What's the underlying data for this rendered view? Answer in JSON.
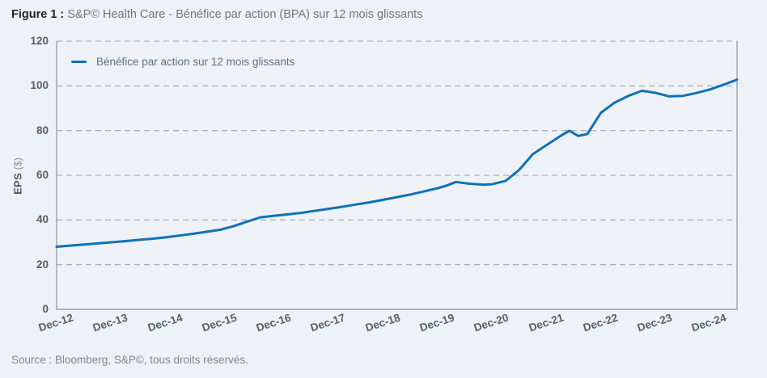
{
  "header": {
    "label": "Figure 1 :",
    "title": "S&P© Health Care - Bénéfice par action (BPA) sur 12 mois glissants"
  },
  "footer": {
    "source": "Source : Bloomberg, S&P©, tous droits réservés."
  },
  "colors": {
    "background": "#eef1f6",
    "line": "#0e72b5",
    "grid": "#aab2bc",
    "axis": "#99a2ac",
    "tick_text": "#53606f",
    "legend_text": "#5b7186",
    "title_label": "#20252c",
    "title_text": "#6e7781",
    "source_text": "#81888f"
  },
  "chart_data": {
    "type": "line",
    "title": "S&P© Health Care - Bénéfice par action (BPA) sur 12 mois glissants",
    "ylabel": "EPS",
    "ylabel_unit": "($)",
    "ylim": [
      0,
      120
    ],
    "y_ticks": [
      0,
      20,
      40,
      60,
      80,
      100,
      120
    ],
    "grid": "horizontal-dashed",
    "legend_position": "top-left",
    "x_axis_note": "months are counted from Dec-12; axis spans Dec-12 to Jun-25",
    "xlim_months": [
      0,
      150
    ],
    "x_ticks": [
      {
        "label": "Dec-12",
        "m": 0
      },
      {
        "label": "Dec-13",
        "m": 12
      },
      {
        "label": "Dec-14",
        "m": 24
      },
      {
        "label": "Dec-15",
        "m": 36
      },
      {
        "label": "Dec-16",
        "m": 48
      },
      {
        "label": "Dec-17",
        "m": 60
      },
      {
        "label": "Dec-18",
        "m": 72
      },
      {
        "label": "Dec-19",
        "m": 84
      },
      {
        "label": "Dec-20",
        "m": 96
      },
      {
        "label": "Dec-21",
        "m": 108
      },
      {
        "label": "Dec-22",
        "m": 120
      },
      {
        "label": "Dec-23",
        "m": 132
      },
      {
        "label": "Dec-24",
        "m": 144
      }
    ],
    "series": [
      {
        "name": "Bénéfice par action sur 12 mois glissants",
        "color": "#0e72b5",
        "points": [
          [
            "Dec-12",
            0,
            28.0
          ],
          [
            "Mar-13",
            3,
            28.5
          ],
          [
            "Jun-13",
            6,
            29.0
          ],
          [
            "Sep-13",
            9,
            29.5
          ],
          [
            "Dec-13",
            12,
            30.0
          ],
          [
            "Mar-14",
            15,
            30.5
          ],
          [
            "Jun-14",
            18,
            31.1
          ],
          [
            "Sep-14",
            21,
            31.6
          ],
          [
            "Dec-14",
            24,
            32.2
          ],
          [
            "Mar-15",
            27,
            33.0
          ],
          [
            "Jun-15",
            30,
            33.8
          ],
          [
            "Sep-15",
            33,
            34.7
          ],
          [
            "Dec-15",
            36,
            35.6
          ],
          [
            "Mar-16",
            39,
            37.2
          ],
          [
            "Jun-16",
            42,
            39.3
          ],
          [
            "Sep-16",
            45,
            41.2
          ],
          [
            "Dec-16",
            48,
            41.9
          ],
          [
            "Mar-17",
            51,
            42.5
          ],
          [
            "Jun-17",
            54,
            43.2
          ],
          [
            "Sep-17",
            57,
            44.1
          ],
          [
            "Dec-17",
            60,
            45.0
          ],
          [
            "Mar-18",
            63,
            45.9
          ],
          [
            "Jun-18",
            66,
            46.9
          ],
          [
            "Sep-18",
            69,
            47.9
          ],
          [
            "Dec-18",
            72,
            49.0
          ],
          [
            "Mar-19",
            75,
            50.2
          ],
          [
            "Jun-19",
            78,
            51.4
          ],
          [
            "Sep-19",
            81,
            52.8
          ],
          [
            "Dec-19",
            84,
            54.2
          ],
          [
            "Feb-20",
            86,
            55.4
          ],
          [
            "Apr-20",
            88,
            57.0
          ],
          [
            "Jul-20",
            91,
            56.2
          ],
          [
            "Oct-20",
            94,
            55.8
          ],
          [
            "Dec-20",
            96,
            56.0
          ],
          [
            "Mar-21",
            99,
            57.5
          ],
          [
            "Jun-21",
            102,
            62.5
          ],
          [
            "Sep-21",
            105,
            69.5
          ],
          [
            "Dec-21",
            108,
            73.5
          ],
          [
            "Mar-22",
            111,
            77.5
          ],
          [
            "May-22",
            113,
            79.9
          ],
          [
            "Jul-22",
            115,
            77.6
          ],
          [
            "Sep-22",
            117,
            78.5
          ],
          [
            "Dec-22",
            120,
            88.0
          ],
          [
            "Mar-23",
            123,
            92.5
          ],
          [
            "Jun-23",
            126,
            95.5
          ],
          [
            "Sep-23",
            129,
            97.8
          ],
          [
            "Dec-23",
            132,
            96.9
          ],
          [
            "Mar-24",
            135,
            95.3
          ],
          [
            "Jun-24",
            138,
            95.5
          ],
          [
            "Sep-24",
            141,
            96.8
          ],
          [
            "Dec-24",
            144,
            98.4
          ],
          [
            "Mar-25",
            147,
            100.5
          ],
          [
            "Jun-25",
            150,
            102.8
          ]
        ]
      }
    ]
  }
}
